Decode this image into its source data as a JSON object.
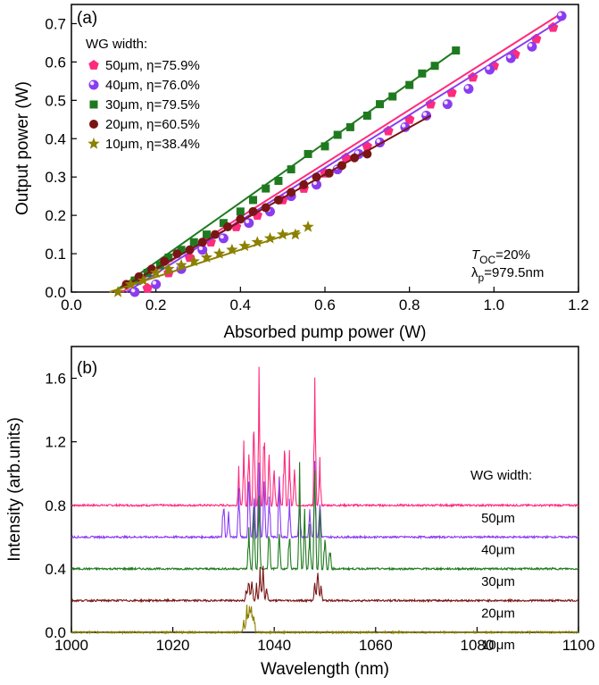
{
  "chart_data": [
    {
      "type": "scatter",
      "panel_label": "(a)",
      "xlabel": "Absorbed pump power (W)",
      "ylabel": "Output power (W)",
      "xlim": [
        0.0,
        1.2
      ],
      "ylim": [
        0.0,
        0.75
      ],
      "xticks": [
        "0.0",
        "0.2",
        "0.4",
        "0.6",
        "0.8",
        "1.0",
        "1.2"
      ],
      "yticks": [
        "0.0",
        "0.1",
        "0.2",
        "0.3",
        "0.4",
        "0.5",
        "0.6",
        "0.7"
      ],
      "legend_title": "WG width:",
      "legend_position": "top-left",
      "annotation_line1": "T",
      "annotation_sub1": "OC",
      "annotation_val1": "=20%",
      "annotation_line2": "λ",
      "annotation_sub2": "p",
      "annotation_val2": "=979.5nm",
      "series": [
        {
          "name": "50μm, η=75.9%",
          "marker": "pentagon",
          "color": "#ff2b7d",
          "fit": [
            [
              0.12,
              0.0
            ],
            [
              1.15,
              0.72
            ]
          ],
          "x": [
            0.18,
            0.23,
            0.28,
            0.33,
            0.39,
            0.44,
            0.5,
            0.55,
            0.6,
            0.65,
            0.7,
            0.75,
            0.8,
            0.85,
            0.9,
            0.95,
            1.0,
            1.05,
            1.1,
            1.14
          ],
          "y": [
            0.01,
            0.05,
            0.09,
            0.13,
            0.17,
            0.2,
            0.24,
            0.27,
            0.31,
            0.35,
            0.38,
            0.42,
            0.45,
            0.49,
            0.52,
            0.56,
            0.59,
            0.62,
            0.66,
            0.69
          ]
        },
        {
          "name": "40μm, η=76.0%",
          "marker": "ball",
          "color": "#8a3cf0",
          "fit": [
            [
              0.13,
              0.0
            ],
            [
              1.16,
              0.71
            ]
          ],
          "x": [
            0.15,
            0.2,
            0.26,
            0.31,
            0.36,
            0.42,
            0.47,
            0.52,
            0.58,
            0.63,
            0.68,
            0.73,
            0.79,
            0.84,
            0.89,
            0.94,
            0.99,
            1.04,
            1.09,
            1.16
          ],
          "y": [
            0.0,
            0.02,
            0.06,
            0.11,
            0.14,
            0.18,
            0.21,
            0.25,
            0.28,
            0.32,
            0.36,
            0.39,
            0.43,
            0.46,
            0.49,
            0.53,
            0.58,
            0.61,
            0.64,
            0.72
          ]
        },
        {
          "name": "30μm, η=79.5%",
          "marker": "square",
          "color": "#1f7a1f",
          "fit": [
            [
              0.1,
              0.0
            ],
            [
              0.91,
              0.63
            ]
          ],
          "x": [
            0.15,
            0.18,
            0.21,
            0.23,
            0.26,
            0.29,
            0.32,
            0.36,
            0.4,
            0.43,
            0.46,
            0.49,
            0.52,
            0.56,
            0.6,
            0.63,
            0.66,
            0.7,
            0.73,
            0.76,
            0.8,
            0.83,
            0.86,
            0.91
          ],
          "y": [
            0.03,
            0.05,
            0.07,
            0.09,
            0.11,
            0.13,
            0.15,
            0.18,
            0.21,
            0.24,
            0.27,
            0.29,
            0.32,
            0.36,
            0.38,
            0.41,
            0.43,
            0.46,
            0.49,
            0.51,
            0.54,
            0.57,
            0.59,
            0.63
          ]
        },
        {
          "name": "20μm, η=60.5%",
          "marker": "circle",
          "color": "#7a1515",
          "fit": [
            [
              0.1,
              0.0
            ],
            [
              0.85,
              0.46
            ]
          ],
          "x": [
            0.13,
            0.16,
            0.19,
            0.22,
            0.25,
            0.28,
            0.31,
            0.34,
            0.37,
            0.4,
            0.43,
            0.46,
            0.49,
            0.52,
            0.55,
            0.58,
            0.61,
            0.64,
            0.67,
            0.7
          ],
          "y": [
            0.02,
            0.04,
            0.06,
            0.08,
            0.1,
            0.11,
            0.13,
            0.15,
            0.17,
            0.19,
            0.21,
            0.22,
            0.24,
            0.26,
            0.28,
            0.3,
            0.31,
            0.33,
            0.35,
            0.36
          ]
        },
        {
          "name": "10μm, η=38.4%",
          "marker": "star",
          "color": "#8b8000",
          "fit": [
            [
              0.09,
              0.0
            ],
            [
              0.54,
              0.16
            ]
          ],
          "x": [
            0.11,
            0.14,
            0.17,
            0.2,
            0.23,
            0.26,
            0.29,
            0.32,
            0.35,
            0.38,
            0.41,
            0.44,
            0.47,
            0.5,
            0.53,
            0.56
          ],
          "y": [
            0.0,
            0.02,
            0.03,
            0.05,
            0.06,
            0.07,
            0.08,
            0.09,
            0.1,
            0.11,
            0.12,
            0.13,
            0.14,
            0.15,
            0.15,
            0.17
          ]
        }
      ]
    },
    {
      "type": "line",
      "panel_label": "(b)",
      "xlabel": "Wavelength (nm)",
      "ylabel": "Intensity (arb.units)",
      "xlim": [
        1000,
        1100
      ],
      "ylim": [
        0.0,
        1.8
      ],
      "xticks": [
        "1000",
        "1020",
        "1040",
        "1060",
        "1080",
        "1100"
      ],
      "yticks": [
        "0.0",
        "0.4",
        "0.8",
        "1.2",
        "1.6"
      ],
      "label_header": "WG width:",
      "series": [
        {
          "name": "50μm",
          "color": "#ff2b7d",
          "baseline": 0.8,
          "label_y": 0.72,
          "peaks": [
            [
              1033,
              0.25
            ],
            [
              1034,
              0.42
            ],
            [
              1035,
              0.55
            ],
            [
              1036,
              0.7
            ],
            [
              1037,
              0.98
            ],
            [
              1038,
              0.6
            ],
            [
              1039,
              0.45
            ],
            [
              1040,
              0.3
            ],
            [
              1041,
              0.22
            ],
            [
              1042,
              0.5
            ],
            [
              1043,
              0.35
            ],
            [
              1044,
              0.25
            ],
            [
              1048,
              0.92
            ],
            [
              1049,
              0.3
            ]
          ]
        },
        {
          "name": "40μm",
          "color": "#8a3cf0",
          "baseline": 0.6,
          "label_y": 0.52,
          "peaks": [
            [
              1030,
              0.3
            ],
            [
              1031,
              0.18
            ],
            [
              1033,
              0.35
            ],
            [
              1035,
              0.5
            ],
            [
              1036,
              0.42
            ],
            [
              1037,
              0.55
            ],
            [
              1038,
              0.4
            ],
            [
              1039,
              0.35
            ],
            [
              1041,
              0.45
            ],
            [
              1043,
              0.25
            ],
            [
              1045,
              0.3
            ],
            [
              1047,
              0.2
            ],
            [
              1048,
              0.55
            ],
            [
              1049,
              0.3
            ]
          ]
        },
        {
          "name": "30μm",
          "color": "#1f7a1f",
          "baseline": 0.4,
          "label_y": 0.32,
          "peaks": [
            [
              1035,
              0.3
            ],
            [
              1036,
              0.42
            ],
            [
              1037,
              0.55
            ],
            [
              1039,
              0.3
            ],
            [
              1041,
              0.25
            ],
            [
              1043,
              0.32
            ],
            [
              1045,
              0.68
            ],
            [
              1046,
              0.4
            ],
            [
              1047,
              0.3
            ],
            [
              1048,
              0.85
            ],
            [
              1049,
              0.45
            ],
            [
              1050,
              0.28
            ],
            [
              1051,
              0.15
            ]
          ]
        },
        {
          "name": "20μm",
          "color": "#7a1515",
          "baseline": 0.2,
          "label_y": 0.12,
          "peaks": [
            [
              1034.5,
              0.08
            ],
            [
              1035,
              0.18
            ],
            [
              1035.6,
              0.2
            ],
            [
              1036.5,
              0.12
            ],
            [
              1037.2,
              0.25
            ],
            [
              1037.8,
              0.22
            ],
            [
              1038.5,
              0.1
            ],
            [
              1048,
              0.12
            ],
            [
              1048.6,
              0.22
            ],
            [
              1049.2,
              0.12
            ]
          ]
        },
        {
          "name": "10μm",
          "color": "#8b8000",
          "baseline": 0.0,
          "label_y": -0.08,
          "peaks": [
            [
              1034,
              0.08
            ],
            [
              1034.6,
              0.2
            ],
            [
              1035.1,
              0.25
            ],
            [
              1035.5,
              0.22
            ],
            [
              1036,
              0.15
            ]
          ]
        }
      ]
    }
  ]
}
